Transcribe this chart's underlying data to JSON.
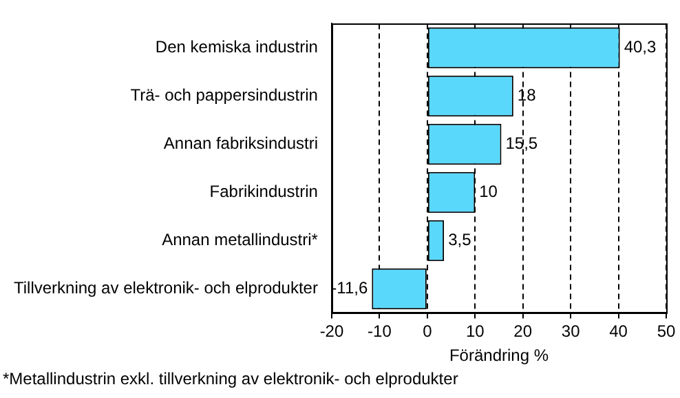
{
  "chart_data": {
    "type": "bar",
    "orientation": "horizontal",
    "xlabel": "Förändring %",
    "categories": [
      "Den kemiska industrin",
      "Trä- och pappersindustrin",
      "Annan fabriksindustri",
      "Fabrikindustrin",
      "Annan metallindustri*",
      "Tillverkning av elektronik- och elprodukter"
    ],
    "values": [
      40.3,
      18,
      15.5,
      10,
      3.5,
      -11.6
    ],
    "value_labels": [
      "40,3",
      "18",
      "15,5",
      "10",
      "3,5",
      "-11,6"
    ],
    "color": "#5ad8fc",
    "xlim": [
      -20,
      50
    ],
    "xticks": [
      -20,
      -10,
      0,
      10,
      20,
      30,
      40,
      50
    ],
    "grid": "x",
    "legend": false,
    "annotations": [
      "*Metallindustrin exkl. tillverkning av elektronik- och elprodukter"
    ]
  }
}
